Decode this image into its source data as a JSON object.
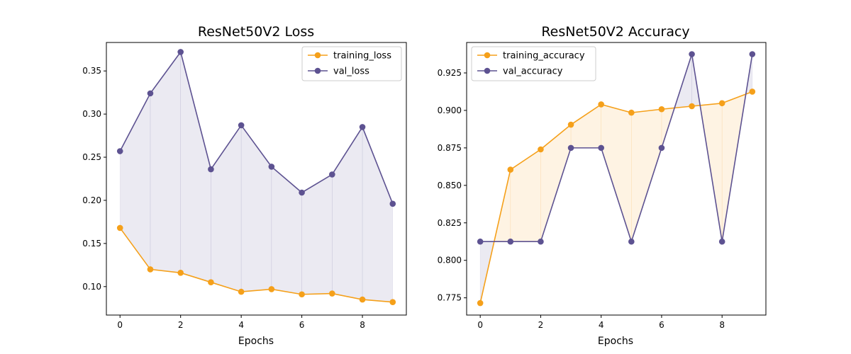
{
  "chart_data": [
    {
      "type": "line",
      "title": "ResNet50V2 Loss",
      "xlabel": "Epochs",
      "ylabel": "",
      "x": [
        0,
        1,
        2,
        3,
        4,
        5,
        6,
        7,
        8,
        9
      ],
      "xlim": [
        -0.45,
        9.45
      ],
      "ylim": [
        0.067,
        0.383
      ],
      "xticks": [
        0,
        2,
        4,
        6,
        8
      ],
      "yticks": [
        0.1,
        0.15,
        0.2,
        0.25,
        0.3,
        0.35
      ],
      "ytick_labels": [
        "0.10",
        "0.15",
        "0.20",
        "0.25",
        "0.30",
        "0.35"
      ],
      "grid": false,
      "legend": "top-right",
      "fill_between": true,
      "series": [
        {
          "name": "training_loss",
          "color": "#f5a01a",
          "values": [
            0.168,
            0.12,
            0.116,
            0.105,
            0.094,
            0.097,
            0.091,
            0.092,
            0.085,
            0.082
          ]
        },
        {
          "name": "val_loss",
          "color": "#5d5291",
          "values": [
            0.257,
            0.324,
            0.372,
            0.236,
            0.287,
            0.239,
            0.209,
            0.23,
            0.285,
            0.196
          ]
        }
      ]
    },
    {
      "type": "line",
      "title": "ResNet50V2 Accuracy",
      "xlabel": "Epochs",
      "ylabel": "",
      "x": [
        0,
        1,
        2,
        3,
        4,
        5,
        6,
        7,
        8,
        9
      ],
      "xlim": [
        -0.45,
        9.45
      ],
      "ylim": [
        0.7635,
        0.9453
      ],
      "xticks": [
        0,
        2,
        4,
        6,
        8
      ],
      "yticks": [
        0.775,
        0.8,
        0.825,
        0.85,
        0.875,
        0.9,
        0.925
      ],
      "ytick_labels": [
        "0.775",
        "0.800",
        "0.825",
        "0.850",
        "0.875",
        "0.900",
        "0.925"
      ],
      "grid": false,
      "legend": "top-left",
      "fill_between": true,
      "series": [
        {
          "name": "training_accuracy",
          "color": "#f5a01a",
          "values": [
            0.7715,
            0.8605,
            0.874,
            0.8905,
            0.904,
            0.8985,
            0.9008,
            0.9028,
            0.9048,
            0.9125
          ]
        },
        {
          "name": "val_accuracy",
          "color": "#5d5291",
          "values": [
            0.8125,
            0.8125,
            0.8125,
            0.875,
            0.875,
            0.8125,
            0.875,
            0.9375,
            0.8125,
            0.9375
          ]
        }
      ]
    }
  ]
}
